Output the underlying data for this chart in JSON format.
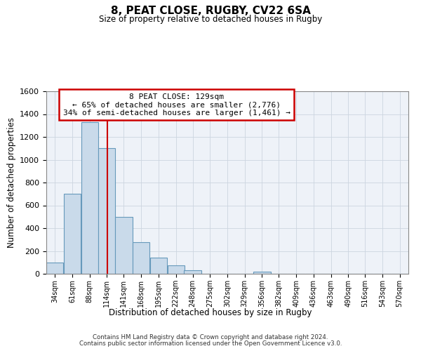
{
  "title": "8, PEAT CLOSE, RUGBY, CV22 6SA",
  "subtitle": "Size of property relative to detached houses in Rugby",
  "xlabel": "Distribution of detached houses by size in Rugby",
  "ylabel": "Number of detached properties",
  "bin_labels": [
    "34sqm",
    "61sqm",
    "88sqm",
    "114sqm",
    "141sqm",
    "168sqm",
    "195sqm",
    "222sqm",
    "248sqm",
    "275sqm",
    "302sqm",
    "329sqm",
    "356sqm",
    "382sqm",
    "409sqm",
    "436sqm",
    "463sqm",
    "490sqm",
    "516sqm",
    "543sqm",
    "570sqm"
  ],
  "bar_values": [
    100,
    700,
    1330,
    1100,
    500,
    280,
    140,
    75,
    30,
    0,
    0,
    0,
    20,
    0,
    0,
    0,
    0,
    0,
    0,
    0,
    0
  ],
  "ylim": [
    0,
    1600
  ],
  "yticks": [
    0,
    200,
    400,
    600,
    800,
    1000,
    1200,
    1400,
    1600
  ],
  "bar_color": "#c9daea",
  "bar_edgecolor": "#6699bb",
  "vline_color": "#cc0000",
  "annotation_title": "8 PEAT CLOSE: 129sqm",
  "annotation_line1": "← 65% of detached houses are smaller (2,776)",
  "annotation_line2": "34% of semi-detached houses are larger (1,461) →",
  "annotation_box_color": "#ffffff",
  "annotation_box_edgecolor": "#cc0000",
  "footer_line1": "Contains HM Land Registry data © Crown copyright and database right 2024.",
  "footer_line2": "Contains public sector information licensed under the Open Government Licence v3.0.",
  "bin_edges": [
    34,
    61,
    88,
    114,
    141,
    168,
    195,
    222,
    248,
    275,
    302,
    329,
    356,
    382,
    409,
    436,
    463,
    490,
    516,
    543,
    570
  ],
  "bin_width": 27,
  "vline_x_bin_idx": 3,
  "bg_color": "#eef2f8",
  "grid_color": "#ccd5e0"
}
